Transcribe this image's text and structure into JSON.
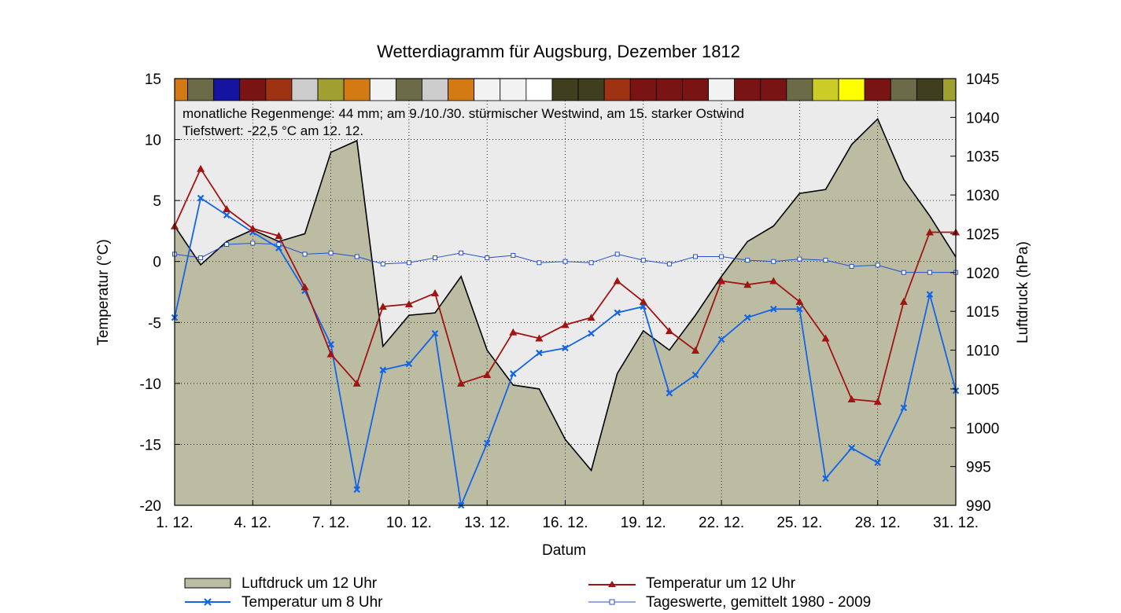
{
  "chart_data": {
    "type": "line",
    "title": "Wetterdiagramm für Augsburg, Dezember 1812",
    "xlabel": "Datum",
    "ylabel_left": "Temperatur (°C)",
    "ylabel_right": "Luftdruck (hPa)",
    "notes": [
      "monatliche Regenmenge: 44 mm;  am 9./10./30. stürmischer Westwind, am 15. starker Ostwind",
      "Tiefstwert: -22,5 °C am 12. 12."
    ],
    "x_ticks": [
      1,
      4,
      7,
      10,
      13,
      16,
      19,
      22,
      25,
      28,
      31
    ],
    "x_tick_labels": [
      "1. 12.",
      "4. 12.",
      "7. 12.",
      "10. 12.",
      "13. 12.",
      "16. 12.",
      "19. 12.",
      "22. 12.",
      "25. 12.",
      "28. 12.",
      "31. 12."
    ],
    "xlim": [
      1,
      31
    ],
    "ylim_left": [
      -20,
      15
    ],
    "y_ticks_left": [
      15,
      10,
      5,
      0,
      -5,
      -10,
      -15,
      -20
    ],
    "ylim_right": [
      990,
      1045
    ],
    "y_ticks_right": [
      1045,
      1040,
      1035,
      1030,
      1025,
      1020,
      1015,
      1010,
      1005,
      1000,
      995,
      990
    ],
    "days": [
      1,
      2,
      3,
      4,
      5,
      6,
      7,
      8,
      9,
      10,
      11,
      12,
      13,
      14,
      15,
      16,
      17,
      18,
      19,
      20,
      21,
      22,
      23,
      24,
      25,
      26,
      27,
      28,
      29,
      30,
      31
    ],
    "weather_colors": [
      "#d47a14",
      "#6b6b47",
      "#1414a0",
      "#7a1414",
      "#a03214",
      "#cccccc",
      "#a0a032",
      "#d47a14",
      "#f2f2f2",
      "#6b6b47",
      "#cccccc",
      "#d47a14",
      "#f2f2f2",
      "#f2f2f2",
      "#ffffff",
      "#3f3f1f",
      "#3f3f1f",
      "#a03214",
      "#7a1414",
      "#7a1414",
      "#7a1414",
      "#f2f2f2",
      "#7a1414",
      "#7a1414",
      "#6b6b47",
      "#cccc28",
      "#ffff00",
      "#7a1414",
      "#6b6b47",
      "#3f3f1f",
      "#a0a032"
    ],
    "series": [
      {
        "name": "Luftdruck um 12 Uhr",
        "axis": "right",
        "style": "area",
        "color": "#bcbca2",
        "values": [
          1026,
          1021,
          1024,
          1025.5,
          1024,
          1025,
          1035.5,
          1037,
          1010.5,
          1014.5,
          1014.8,
          1019.5,
          1010,
          1005.5,
          1005,
          998.5,
          994.5,
          1007,
          1012.5,
          1010,
          1014.5,
          1019.5,
          1024,
          1026,
          1030.2,
          1030.7,
          1036.5,
          1039.8,
          1032,
          1027.3,
          1022
        ]
      },
      {
        "name": "Temperatur um 12 Uhr",
        "axis": "left",
        "style": "line-triangle",
        "color": "#a01414",
        "values": [
          2.9,
          7.6,
          4.3,
          2.7,
          2.1,
          -2.1,
          -7.6,
          -10.0,
          -3.7,
          -3.5,
          -2.6,
          -10.0,
          -9.3,
          -5.8,
          -6.3,
          -5.2,
          -4.6,
          -1.6,
          -3.3,
          -5.7,
          -7.3,
          -1.6,
          -1.9,
          -1.6,
          -3.3,
          -6.3,
          -11.3,
          -11.5,
          -3.3,
          2.4,
          2.4
        ]
      },
      {
        "name": "Temperatur um 8 Uhr",
        "axis": "left",
        "style": "line-x",
        "color": "#1464e6",
        "values": [
          -4.6,
          5.2,
          3.8,
          2.4,
          1.1,
          -2.4,
          -6.8,
          -18.7,
          -8.9,
          -8.4,
          -5.9,
          -20.0,
          -14.9,
          -9.2,
          -7.5,
          -7.1,
          -5.9,
          -4.2,
          -3.7,
          -10.8,
          -9.3,
          -6.4,
          -4.6,
          -3.9,
          -3.9,
          -17.8,
          -15.3,
          -16.5,
          -12.0,
          -2.7,
          -10.6
        ]
      },
      {
        "name": "Tageswerte, gemittelt 1980 - 2009",
        "axis": "left",
        "style": "line-square",
        "color": "#2850c8",
        "values": [
          0.6,
          0.3,
          1.4,
          1.5,
          1.4,
          0.6,
          0.7,
          0.4,
          -0.2,
          -0.1,
          0.3,
          0.7,
          0.3,
          0.5,
          -0.1,
          0.0,
          -0.1,
          0.6,
          0.1,
          -0.2,
          0.4,
          0.4,
          0.1,
          0.0,
          0.2,
          0.1,
          -0.4,
          -0.3,
          -0.9,
          -0.9,
          -0.9
        ]
      }
    ],
    "legend_position": "bottom"
  }
}
